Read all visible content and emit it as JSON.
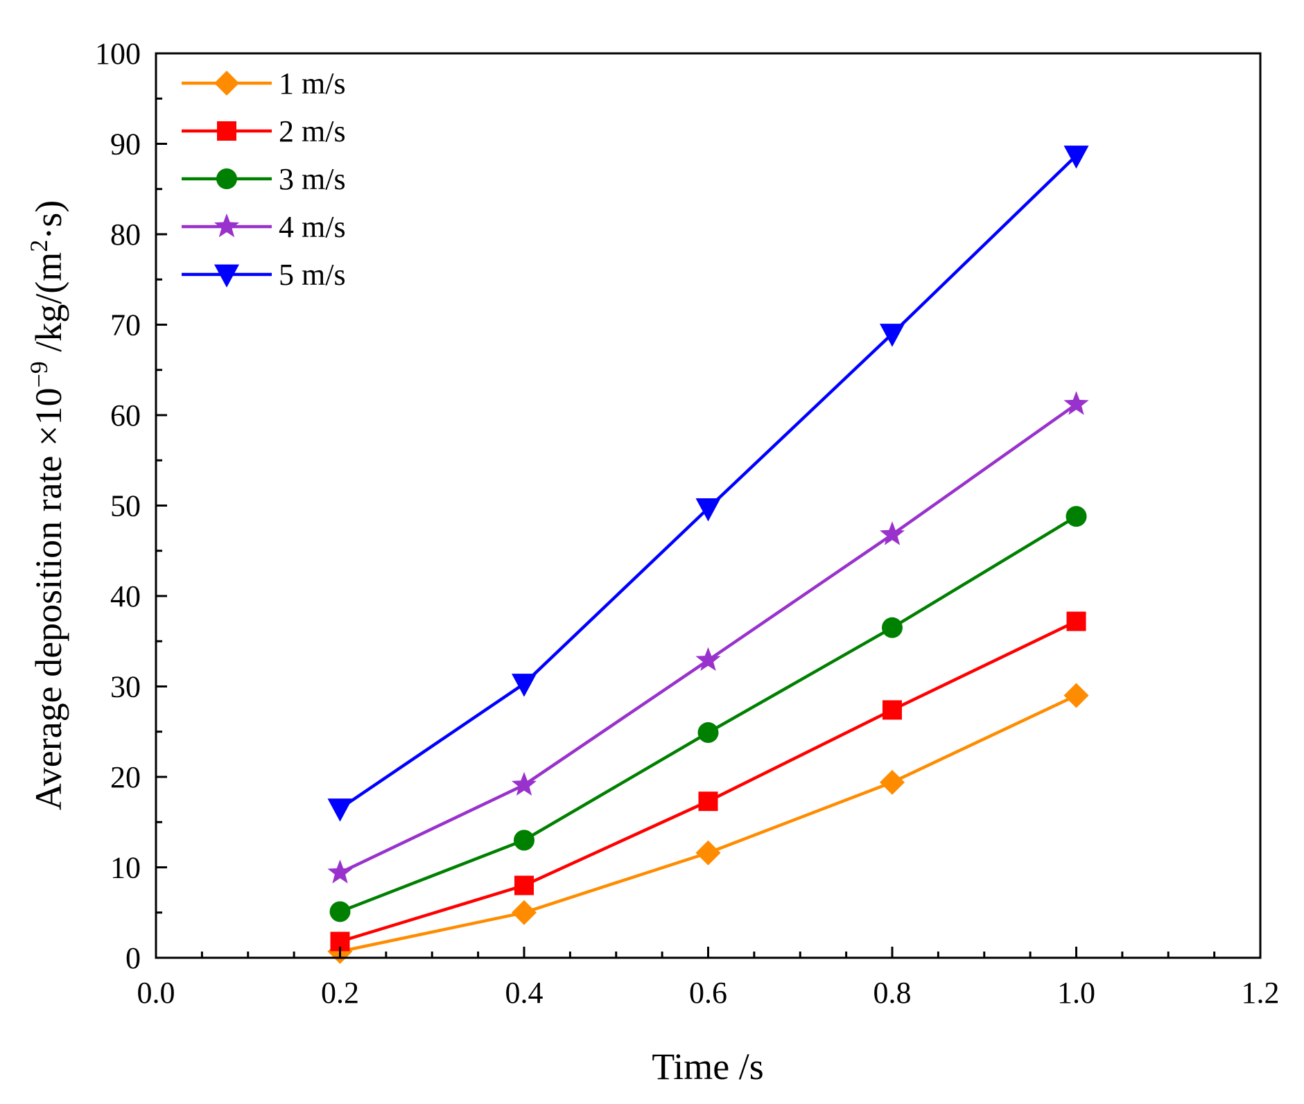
{
  "chart_data": {
    "type": "line",
    "xlabel": "Time /s",
    "ylabel": "Average deposition rate ×10",
    "ylabel_exp": "−9",
    "ylabel_unit": " /kg/(m",
    "ylabel_unit_exp": "2",
    "ylabel_unit_end": "·s)",
    "xlim": [
      0.0,
      1.2
    ],
    "ylim": [
      0,
      100
    ],
    "xticks": [
      "0.0",
      "0.2",
      "0.4",
      "0.6",
      "0.8",
      "1.0",
      "1.2"
    ],
    "yticks": [
      "0",
      "10",
      "20",
      "30",
      "40",
      "50",
      "60",
      "70",
      "80",
      "90",
      "100"
    ],
    "grid": false,
    "legend_position": "top-left",
    "x": [
      0.2,
      0.4,
      0.6,
      0.8,
      1.0
    ],
    "series": [
      {
        "name": "1 m/s",
        "marker": "diamond",
        "color": "#FF8C00",
        "values": [
          0.7,
          5.0,
          11.6,
          19.4,
          29.0
        ]
      },
      {
        "name": "2 m/s",
        "marker": "square",
        "color": "#FF0000",
        "values": [
          1.8,
          8.0,
          17.3,
          27.4,
          37.2
        ]
      },
      {
        "name": "3 m/s",
        "marker": "circle",
        "color": "#008000",
        "values": [
          5.1,
          13.0,
          24.9,
          36.5,
          48.8
        ]
      },
      {
        "name": "4 m/s",
        "marker": "star",
        "color": "#9932CC",
        "values": [
          9.4,
          19.1,
          32.9,
          46.8,
          61.2
        ]
      },
      {
        "name": "5 m/s",
        "marker": "triangle-down",
        "color": "#0000FF",
        "values": [
          16.5,
          30.3,
          49.7,
          69.0,
          88.7
        ]
      }
    ]
  }
}
